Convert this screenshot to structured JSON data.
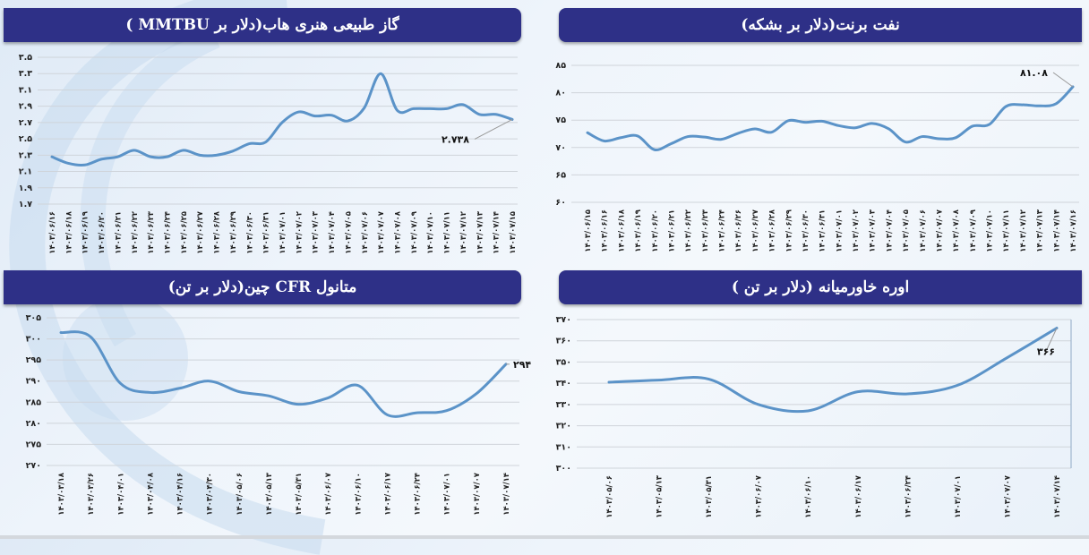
{
  "colors": {
    "title_bar": "#2e3087",
    "title_text": "#ffffff",
    "series_line": "#5b93c8",
    "gridline": "#cfd4da",
    "background": "#eef4fb"
  },
  "panels": {
    "gas": {
      "title": "گاز طبیعی هنری هاب(دلار بر MMTBU )",
      "last_value_label": "۲.۷۳۸"
    },
    "brent": {
      "title": "نفت برنت(دلار بر بشکه)",
      "last_value_label": "۸۱.۰۸"
    },
    "methanol": {
      "title": "متانول CFR  چین(دلار بر تن)",
      "last_value_label": "۲۹۴"
    },
    "urea": {
      "title": "اوره خاورمیانه (دلار بر تن )",
      "last_value_label": "۳۶۶"
    }
  },
  "chart_data": [
    {
      "id": "gas",
      "type": "line",
      "title": "گاز طبیعی هنری هاب(دلار بر MMTBU )",
      "xlabel": "",
      "ylabel": "",
      "ylim": [
        1.7,
        3.5
      ],
      "yticks": [
        1.7,
        1.9,
        2.1,
        2.3,
        2.5,
        2.7,
        2.9,
        3.1,
        3.3,
        3.5
      ],
      "ytick_labels": [
        "۱.۷",
        "۱.۹",
        "۲.۱",
        "۲.۳",
        "۲.۵",
        "۲.۷",
        "۲.۹",
        "۳.۱",
        "۳.۳",
        "۳.۵"
      ],
      "grid": true,
      "x": [
        "۱۴۰۳/۰۶/۱۶",
        "۱۴۰۳/۰۶/۱۸",
        "۱۴۰۳/۰۶/۱۹",
        "۱۴۰۳/۰۶/۲۰",
        "۱۴۰۳/۰۶/۲۱",
        "۱۴۰۳/۰۶/۲۲",
        "۱۴۰۳/۰۶/۲۳",
        "۱۴۰۳/۰۶/۲۴",
        "۱۴۰۳/۰۶/۲۵",
        "۱۴۰۳/۰۶/۲۷",
        "۱۴۰۳/۰۶/۲۸",
        "۱۴۰۳/۰۶/۲۹",
        "۱۴۰۳/۰۶/۳۰",
        "۱۴۰۳/۰۶/۳۱",
        "۱۴۰۳/۰۷/۰۱",
        "۱۴۰۳/۰۷/۰۲",
        "۱۴۰۳/۰۷/۰۳",
        "۱۴۰۳/۰۷/۰۴",
        "۱۴۰۳/۰۷/۰۵",
        "۱۴۰۳/۰۷/۰۶",
        "۱۴۰۳/۰۷/۰۷",
        "۱۴۰۳/۰۷/۰۸",
        "۱۴۰۳/۰۷/۰۹",
        "۱۴۰۳/۰۷/۱۰",
        "۱۴۰۳/۰۷/۱۱",
        "۱۴۰۳/۰۷/۱۲",
        "۱۴۰۳/۰۷/۱۳",
        "۱۴۰۳/۰۷/۱۴",
        "۱۴۰۳/۰۷/۱۵"
      ],
      "values": [
        2.28,
        2.2,
        2.18,
        2.25,
        2.28,
        2.36,
        2.28,
        2.28,
        2.36,
        2.3,
        2.3,
        2.35,
        2.44,
        2.46,
        2.7,
        2.83,
        2.78,
        2.79,
        2.72,
        2.88,
        3.3,
        2.85,
        2.87,
        2.87,
        2.87,
        2.92,
        2.8,
        2.8,
        2.738
      ],
      "annotation": {
        "text": "۲.۷۳۸",
        "value": 2.738
      }
    },
    {
      "id": "brent",
      "type": "line",
      "title": "نفت برنت(دلار بر بشکه)",
      "xlabel": "",
      "ylabel": "",
      "ylim": [
        60,
        85
      ],
      "yticks": [
        60,
        65,
        70,
        75,
        80,
        85
      ],
      "ytick_labels": [
        "۶۰",
        "۶۵",
        "۷۰",
        "۷۵",
        "۸۰",
        "۸۵"
      ],
      "grid": true,
      "x": [
        "۱۴۰۳/۰۶/۱۵",
        "۱۴۰۳/۰۶/۱۶",
        "۱۴۰۳/۰۶/۱۸",
        "۱۴۰۳/۰۶/۱۹",
        "۱۴۰۳/۰۶/۲۰",
        "۱۴۰۳/۰۶/۲۱",
        "۱۴۰۳/۰۶/۲۲",
        "۱۴۰۳/۰۶/۲۳",
        "۱۴۰۳/۰۶/۲۴",
        "۱۴۰۳/۰۶/۲۶",
        "۱۴۰۳/۰۶/۲۷",
        "۱۴۰۳/۰۶/۲۸",
        "۱۴۰۳/۰۶/۲۹",
        "۱۴۰۳/۰۶/۳۰",
        "۱۴۰۳/۰۶/۳۱",
        "۱۴۰۳/۰۷/۰۱",
        "۱۴۰۳/۰۷/۰۲",
        "۱۴۰۳/۰۷/۰۳",
        "۱۴۰۳/۰۷/۰۴",
        "۱۴۰۳/۰۷/۰۵",
        "۱۴۰۳/۰۷/۰۶",
        "۱۴۰۳/۰۷/۰۷",
        "۱۴۰۳/۰۷/۰۸",
        "۱۴۰۳/۰۷/۰۹",
        "۱۴۰۳/۰۷/۱۰",
        "۱۴۰۳/۰۷/۱۱",
        "۱۴۰۳/۰۷/۱۲",
        "۱۴۰۳/۰۷/۱۳",
        "۱۴۰۳/۰۷/۱۴",
        "۱۴۰۳/۰۷/۱۶"
      ],
      "values": [
        72.7,
        71.2,
        71.8,
        72.1,
        69.6,
        70.7,
        72.0,
        71.9,
        71.5,
        72.6,
        73.4,
        72.8,
        74.9,
        74.6,
        74.8,
        74.0,
        73.6,
        74.4,
        73.4,
        71.0,
        72.0,
        71.6,
        71.8,
        73.9,
        74.2,
        77.5,
        77.8,
        77.6,
        78.0,
        81.08
      ],
      "annotation": {
        "text": "۸۱.۰۸",
        "value": 81.08
      }
    },
    {
      "id": "methanol",
      "type": "line",
      "title": "متانول CFR  چین(دلار بر تن)",
      "xlabel": "",
      "ylabel": "",
      "ylim": [
        270,
        305
      ],
      "yticks": [
        270,
        275,
        280,
        285,
        290,
        295,
        300,
        305
      ],
      "ytick_labels": [
        "۲۷۰",
        "۲۷۵",
        "۲۸۰",
        "۲۸۵",
        "۲۹۰",
        "۲۹۵",
        "۳۰۰",
        "۳۰۵"
      ],
      "grid": true,
      "x": [
        "۱۴۰۳/۰۳/۱۸",
        "۱۴۰۳/۰۳/۲۶",
        "۱۴۰۳/۰۴/۰۱",
        "۱۴۰۳/۰۴/۰۸",
        "۱۴۰۳/۰۴/۱۶",
        "۱۴۰۳/۰۴/۳۰",
        "۱۴۰۳/۰۵/۰۶",
        "۱۴۰۳/۰۵/۱۳",
        "۱۴۰۳/۰۵/۳۱",
        "۱۴۰۳/۰۶/۰۷",
        "۱۴۰۳/۰۶/۱۰",
        "۱۴۰۳/۰۶/۱۷",
        "۱۴۰۳/۰۶/۲۴",
        "۱۴۰۳/۰۷/۰۱",
        "۱۴۰۳/۰۷/۰۷",
        "۱۴۰۳/۰۷/۱۴"
      ],
      "values": [
        301.5,
        300.5,
        289.5,
        287.3,
        288.3,
        290.0,
        287.5,
        286.5,
        284.5,
        286.0,
        289.0,
        282.0,
        282.5,
        283.0,
        287.0,
        294
      ],
      "annotation": {
        "text": "۲۹۴",
        "value": 294
      }
    },
    {
      "id": "urea",
      "type": "line",
      "title": "اوره خاورمیانه (دلار بر تن )",
      "xlabel": "",
      "ylabel": "",
      "ylim": [
        300,
        370
      ],
      "yticks": [
        300,
        310,
        320,
        330,
        340,
        350,
        360,
        370
      ],
      "ytick_labels": [
        "۳۰۰",
        "۳۱۰",
        "۳۲۰",
        "۳۳۰",
        "۳۴۰",
        "۳۵۰",
        "۳۶۰",
        "۳۷۰"
      ],
      "grid": true,
      "x": [
        "۱۴۰۳/۰۵/۰۶",
        "۱۴۰۳/۰۵/۱۳",
        "۱۴۰۳/۰۵/۳۱",
        "۱۴۰۳/۰۶/۰۷",
        "۱۴۰۳/۰۶/۱۰",
        "۱۴۰۳/۰۶/۱۷",
        "۱۴۰۳/۰۶/۲۴",
        "۱۴۰۳/۰۷/۰۱",
        "۱۴۰۳/۰۷/۰۷",
        "۱۴۰۳/۰۷/۱۴"
      ],
      "values": [
        340.5,
        341.5,
        342.0,
        330.0,
        327.0,
        336.0,
        335.0,
        339.0,
        352.0,
        366
      ],
      "annotation": {
        "text": "۳۶۶",
        "value": 366
      }
    }
  ]
}
